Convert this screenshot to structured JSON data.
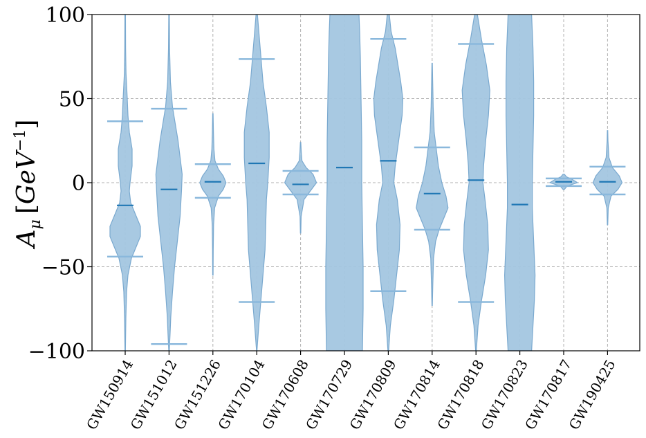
{
  "chart_data": {
    "type": "violin",
    "title": "",
    "xlabel": "",
    "ylabel": "A_μ [GeV^{-1}]",
    "ylabel_parts": {
      "main": "A",
      "sub": "μ",
      "open": "[",
      "unit": "GeV",
      "sup": "−1",
      "close": "]"
    },
    "ylim": [
      -100,
      100
    ],
    "yticks": [
      -100,
      -50,
      0,
      50,
      100
    ],
    "ytick_labels": [
      "−100",
      "−50",
      "0",
      "50",
      "100"
    ],
    "grid": true,
    "colors": {
      "fill": "#a3c6e0",
      "edge": "#7aa9cf",
      "median": "#1f77b4",
      "extrema": "#8ab8dc",
      "grid": "#b0b0b0"
    },
    "categories": [
      "GW150914",
      "GW151012",
      "GW151226",
      "GW170104",
      "GW170608",
      "GW170729",
      "GW170809",
      "GW170814",
      "GW170818",
      "GW170823",
      "GW170817",
      "GW190425"
    ],
    "violins": [
      {
        "event": "GW150914",
        "median": -13.5,
        "lo": -44,
        "hi": 36.5,
        "profile": [
          [
            -100,
            0.3
          ],
          [
            -80,
            1
          ],
          [
            -65,
            2
          ],
          [
            -55,
            4
          ],
          [
            -45,
            9
          ],
          [
            -38,
            16
          ],
          [
            -32,
            22
          ],
          [
            -26,
            22
          ],
          [
            -20,
            16
          ],
          [
            -12,
            8
          ],
          [
            -5,
            6
          ],
          [
            0,
            7
          ],
          [
            10,
            10
          ],
          [
            20,
            10
          ],
          [
            30,
            6
          ],
          [
            40,
            4
          ],
          [
            50,
            3
          ],
          [
            65,
            1.2
          ],
          [
            80,
            0.6
          ],
          [
            100,
            0.4
          ]
        ]
      },
      {
        "event": "GW151012",
        "median": -4,
        "lo": -96,
        "hi": 44,
        "profile": [
          [
            -100,
            0.4
          ],
          [
            -90,
            1.5
          ],
          [
            -80,
            2.5
          ],
          [
            -65,
            5
          ],
          [
            -50,
            8
          ],
          [
            -35,
            12
          ],
          [
            -20,
            16
          ],
          [
            -5,
            18
          ],
          [
            5,
            19
          ],
          [
            15,
            16
          ],
          [
            25,
            13
          ],
          [
            35,
            9
          ],
          [
            45,
            5
          ],
          [
            60,
            2
          ],
          [
            80,
            0.8
          ],
          [
            100,
            0.4
          ]
        ]
      },
      {
        "event": "GW151226",
        "median": 0.5,
        "lo": -9,
        "hi": 11,
        "profile": [
          [
            -55,
            0.3
          ],
          [
            -40,
            0.5
          ],
          [
            -25,
            1
          ],
          [
            -15,
            2.5
          ],
          [
            -8,
            8
          ],
          [
            -4,
            15
          ],
          [
            0,
            19
          ],
          [
            4,
            15
          ],
          [
            8,
            8
          ],
          [
            13,
            3
          ],
          [
            20,
            1.5
          ],
          [
            30,
            0.8
          ],
          [
            41,
            0.3
          ]
        ]
      },
      {
        "event": "GW170104",
        "median": 11.5,
        "lo": -71,
        "hi": 73.5,
        "profile": [
          [
            -100,
            0.3
          ],
          [
            -85,
            3
          ],
          [
            -70,
            6
          ],
          [
            -55,
            9
          ],
          [
            -40,
            12
          ],
          [
            -25,
            13
          ],
          [
            -10,
            14
          ],
          [
            0,
            16
          ],
          [
            15,
            18
          ],
          [
            30,
            18
          ],
          [
            45,
            14
          ],
          [
            60,
            9
          ],
          [
            75,
            6
          ],
          [
            90,
            3
          ],
          [
            100,
            1
          ]
        ]
      },
      {
        "event": "GW170608",
        "median": -1,
        "lo": -7,
        "hi": 7,
        "profile": [
          [
            -30,
            0.3
          ],
          [
            -20,
            0.8
          ],
          [
            -10,
            5
          ],
          [
            -5,
            14
          ],
          [
            0,
            23
          ],
          [
            5,
            18
          ],
          [
            9,
            8
          ],
          [
            13,
            2
          ],
          [
            18,
            1
          ],
          [
            24,
            0.3
          ]
        ]
      },
      {
        "event": "GW170729",
        "median": 9,
        "lo": -100,
        "hi": 100,
        "profile": [
          [
            -100,
            26
          ],
          [
            -75,
            27
          ],
          [
            -50,
            27
          ],
          [
            -25,
            26
          ],
          [
            0,
            25
          ],
          [
            25,
            25
          ],
          [
            50,
            24
          ],
          [
            75,
            23
          ],
          [
            90,
            22
          ],
          [
            100,
            21
          ]
        ]
      },
      {
        "event": "GW170809",
        "median": 13,
        "lo": -64.5,
        "hi": 85.5,
        "profile": [
          [
            -100,
            0.5
          ],
          [
            -85,
            3
          ],
          [
            -70,
            8
          ],
          [
            -55,
            12
          ],
          [
            -40,
            16
          ],
          [
            -25,
            17
          ],
          [
            -10,
            13
          ],
          [
            0,
            8
          ],
          [
            10,
            10
          ],
          [
            25,
            15
          ],
          [
            40,
            20
          ],
          [
            50,
            21
          ],
          [
            60,
            18
          ],
          [
            70,
            14
          ],
          [
            80,
            10
          ],
          [
            90,
            4
          ],
          [
            100,
            1.5
          ]
        ]
      },
      {
        "event": "GW170814",
        "median": -6.5,
        "lo": -28,
        "hi": 21,
        "profile": [
          [
            -73,
            0.3
          ],
          [
            -60,
            1
          ],
          [
            -45,
            2
          ],
          [
            -35,
            5
          ],
          [
            -28,
            10
          ],
          [
            -20,
            18
          ],
          [
            -15,
            23
          ],
          [
            -8,
            20
          ],
          [
            0,
            14
          ],
          [
            10,
            9
          ],
          [
            20,
            6
          ],
          [
            30,
            3
          ],
          [
            45,
            1.5
          ],
          [
            60,
            0.8
          ],
          [
            71,
            0.3
          ]
        ]
      },
      {
        "event": "GW170818",
        "median": 1.5,
        "lo": -71,
        "hi": 82.5,
        "profile": [
          [
            -100,
            0.5
          ],
          [
            -85,
            3
          ],
          [
            -70,
            8
          ],
          [
            -55,
            14
          ],
          [
            -40,
            18
          ],
          [
            -25,
            17
          ],
          [
            -10,
            13
          ],
          [
            0,
            10
          ],
          [
            10,
            11
          ],
          [
            25,
            14
          ],
          [
            40,
            18
          ],
          [
            55,
            20
          ],
          [
            70,
            15
          ],
          [
            85,
            8
          ],
          [
            95,
            4
          ],
          [
            100,
            2
          ]
        ]
      },
      {
        "event": "GW170823",
        "median": -13,
        "lo": -100,
        "hi": 100,
        "profile": [
          [
            -100,
            17
          ],
          [
            -85,
            19
          ],
          [
            -70,
            21
          ],
          [
            -55,
            22
          ],
          [
            -35,
            20
          ],
          [
            -15,
            18
          ],
          [
            0,
            18
          ],
          [
            20,
            19
          ],
          [
            40,
            20
          ],
          [
            60,
            20
          ],
          [
            80,
            19
          ],
          [
            100,
            17
          ]
        ]
      },
      {
        "event": "GW170817",
        "median": 0.5,
        "lo": -2,
        "hi": 2.5,
        "profile": [
          [
            -4,
            1
          ],
          [
            -2,
            5
          ],
          [
            0,
            20
          ],
          [
            2,
            12
          ],
          [
            3.5,
            4
          ],
          [
            5,
            1
          ]
        ]
      },
      {
        "event": "GW190425",
        "median": 0.5,
        "lo": -7,
        "hi": 9.5,
        "profile": [
          [
            -25,
            0.3
          ],
          [
            -15,
            1
          ],
          [
            -8,
            5
          ],
          [
            -4,
            15
          ],
          [
            0,
            21
          ],
          [
            4,
            17
          ],
          [
            9,
            7
          ],
          [
            15,
            2
          ],
          [
            25,
            0.6
          ],
          [
            31,
            0.3
          ]
        ]
      }
    ]
  }
}
